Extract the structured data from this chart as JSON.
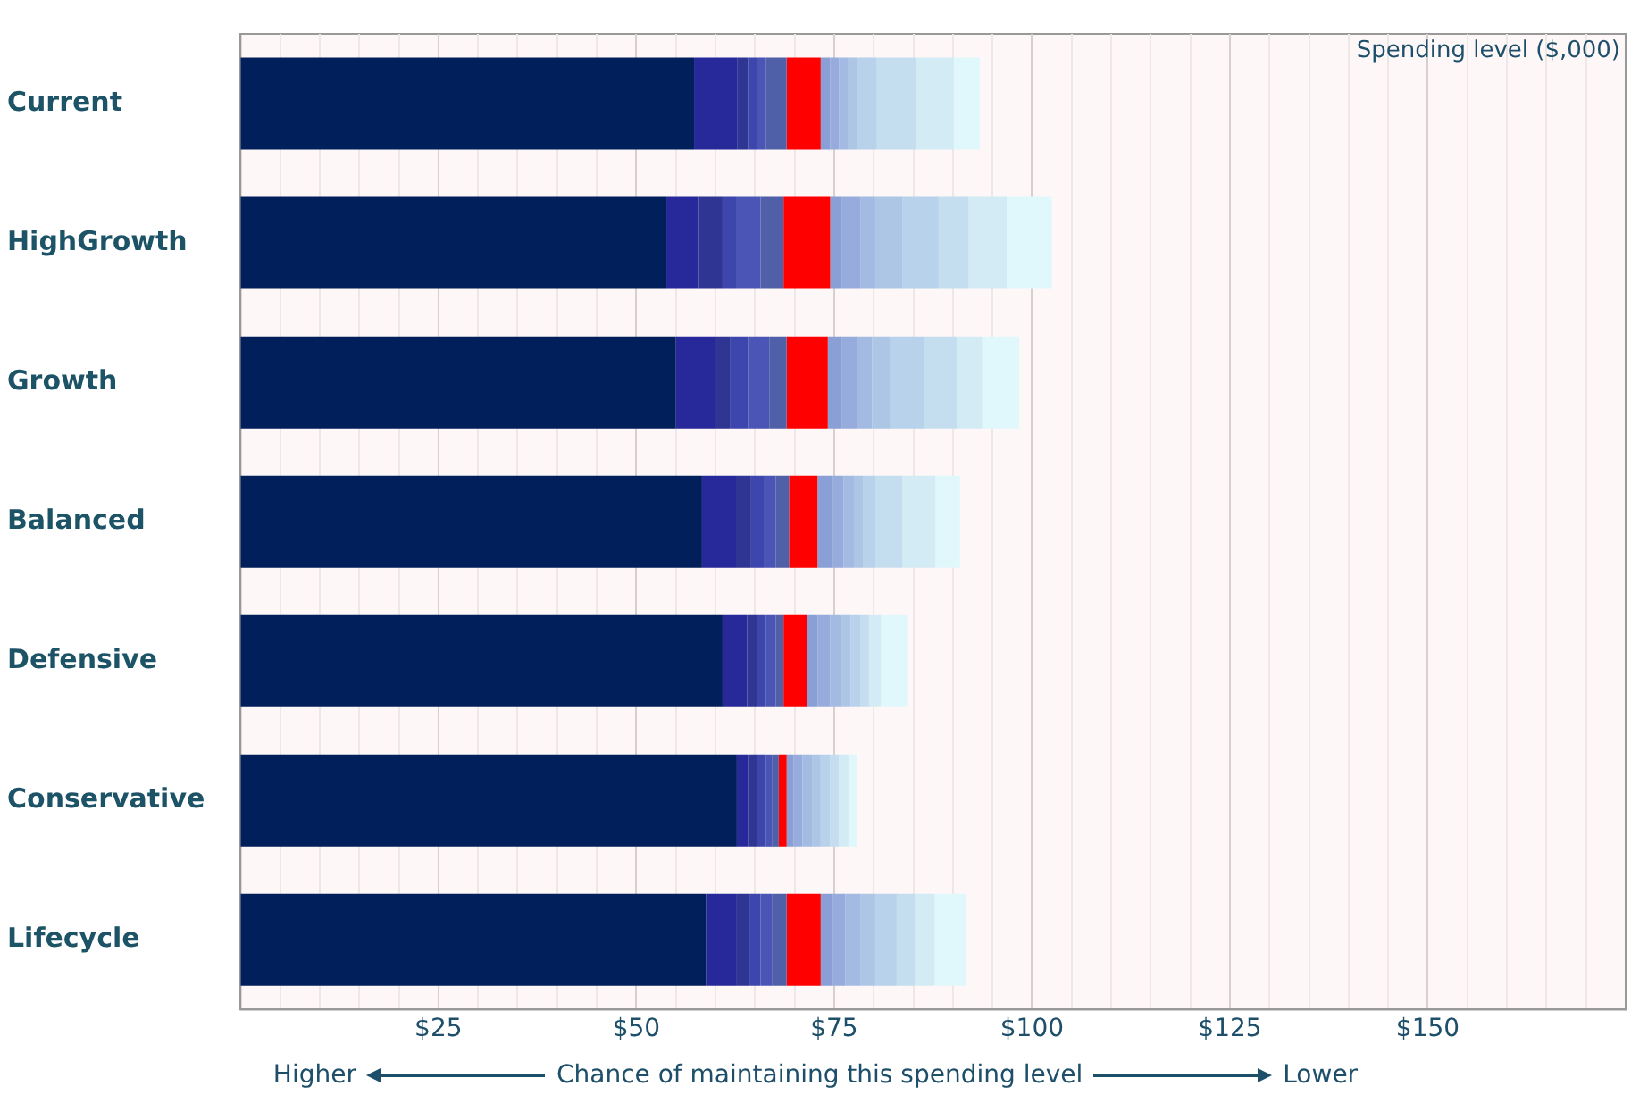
{
  "chart_data": {
    "type": "bar",
    "orientation": "horizontal",
    "stacked": true,
    "xlabel": "Spending level ($,000)",
    "categories": [
      "Current",
      "HighGrowth",
      "Growth",
      "Balanced",
      "Defensive",
      "Conservative",
      "Lifecycle"
    ],
    "series": [
      {
        "color": "#001f5b",
        "values": [
          57.3,
          53.8,
          55.0,
          58.3,
          60.9,
          62.7,
          58.8
        ]
      },
      {
        "color": "#27299a",
        "values": [
          5.5,
          4.1,
          4.9,
          4.3,
          3.1,
          1.4,
          3.9
        ]
      },
      {
        "color": "#2f3592",
        "values": [
          1.3,
          3.0,
          2.0,
          1.9,
          1.3,
          1.2,
          1.6
        ]
      },
      {
        "color": "#3c46ad",
        "values": [
          1.2,
          1.7,
          2.2,
          1.6,
          1.1,
          1.1,
          1.4
        ]
      },
      {
        "color": "#4a55b5",
        "values": [
          1.1,
          3.1,
          2.7,
          1.5,
          1.2,
          0.8,
          1.5
        ]
      },
      {
        "color": "#4f5fa8",
        "values": [
          2.6,
          2.9,
          2.2,
          1.7,
          1.0,
          0.8,
          1.8
        ]
      },
      {
        "color": "#ff0000",
        "values": [
          4.3,
          5.9,
          5.2,
          3.6,
          3.0,
          1.0,
          4.3
        ]
      },
      {
        "color": "#8a9fd6",
        "values": [
          1.2,
          1.5,
          1.8,
          1.9,
          1.3,
          0.9,
          1.5
        ]
      },
      {
        "color": "#97acdc",
        "values": [
          1.1,
          2.3,
          1.9,
          1.4,
          1.6,
          1.1,
          1.6
        ]
      },
      {
        "color": "#a3bbe2",
        "values": [
          1.2,
          1.9,
          1.9,
          1.3,
          1.5,
          1.2,
          1.9
        ]
      },
      {
        "color": "#adc6e6",
        "values": [
          1.1,
          3.4,
          2.3,
          1.2,
          1.1,
          1.1,
          1.9
        ]
      },
      {
        "color": "#b7d2ea",
        "values": [
          2.5,
          4.6,
          4.2,
          1.5,
          1.2,
          1.2,
          2.7
        ]
      },
      {
        "color": "#c4def0",
        "values": [
          4.9,
          3.8,
          4.2,
          3.4,
          1.1,
          1.1,
          2.3
        ]
      },
      {
        "color": "#d3ebf5",
        "values": [
          4.8,
          4.8,
          3.2,
          4.2,
          1.5,
          1.2,
          2.5
        ]
      },
      {
        "color": "#e0f8fb",
        "values": [
          3.3,
          5.7,
          4.7,
          3.1,
          3.3,
          1.1,
          4.0
        ]
      }
    ],
    "xlim": [
      0,
      175
    ],
    "xticks": [
      {
        "value": 5,
        "label": null
      },
      {
        "value": 10,
        "label": null
      },
      {
        "value": 15,
        "label": null
      },
      {
        "value": 20,
        "label": null
      },
      {
        "value": 25,
        "label": "$25"
      },
      {
        "value": 30,
        "label": null
      },
      {
        "value": 35,
        "label": null
      },
      {
        "value": 40,
        "label": null
      },
      {
        "value": 45,
        "label": null
      },
      {
        "value": 50,
        "label": "$50"
      },
      {
        "value": 55,
        "label": null
      },
      {
        "value": 60,
        "label": null
      },
      {
        "value": 65,
        "label": null
      },
      {
        "value": 70,
        "label": null
      },
      {
        "value": 75,
        "label": "$75"
      },
      {
        "value": 80,
        "label": null
      },
      {
        "value": 85,
        "label": null
      },
      {
        "value": 90,
        "label": null
      },
      {
        "value": 95,
        "label": null
      },
      {
        "value": 100,
        "label": "$100"
      },
      {
        "value": 105,
        "label": null
      },
      {
        "value": 110,
        "label": null
      },
      {
        "value": 115,
        "label": null
      },
      {
        "value": 120,
        "label": null
      },
      {
        "value": 125,
        "label": "$125"
      },
      {
        "value": 130,
        "label": null
      },
      {
        "value": 135,
        "label": null
      },
      {
        "value": 140,
        "label": null
      },
      {
        "value": 145,
        "label": null
      },
      {
        "value": 150,
        "label": "$150"
      },
      {
        "value": 155,
        "label": null
      },
      {
        "value": 160,
        "label": null
      },
      {
        "value": 165,
        "label": null
      },
      {
        "value": 170,
        "label": null
      }
    ],
    "grid": "x",
    "legend": false,
    "annotations": [
      "Higher",
      "Chance of maintaining this spending level",
      "Lower"
    ]
  }
}
